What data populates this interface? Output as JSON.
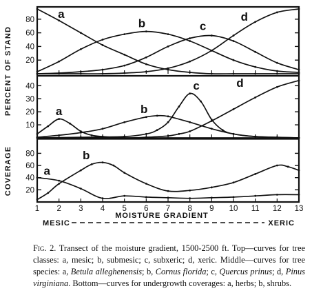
{
  "chart_data": {
    "type": "line",
    "x_ticks": [
      1,
      2,
      3,
      4,
      5,
      6,
      7,
      8,
      9,
      10,
      11,
      12,
      13
    ],
    "xlim": [
      1,
      13
    ],
    "xlabel": "MOISTURE GRADIENT",
    "x_left_label": "MESIC",
    "x_right_label": "XERIC",
    "grid": false,
    "panels": [
      {
        "id": "top",
        "ylabel": "PERCENT OF STAND",
        "ylim": [
          0,
          98
        ],
        "yticks": [
          20,
          40,
          60,
          80
        ],
        "series": [
          {
            "name": "a",
            "x": [
              1,
              2,
              3,
              4,
              5,
              6,
              7,
              8,
              9,
              10,
              11,
              12,
              13
            ],
            "y": [
              95,
              78,
              60,
              42,
              28,
              14,
              6,
              2,
              0,
              0,
              0,
              0,
              0
            ]
          },
          {
            "name": "b",
            "x": [
              1,
              2,
              3,
              4,
              5,
              6,
              7,
              8,
              9,
              10,
              11,
              12,
              13
            ],
            "y": [
              3,
              18,
              36,
              50,
              58,
              62,
              58,
              48,
              34,
              20,
              10,
              4,
              2
            ]
          },
          {
            "name": "c",
            "x": [
              1,
              2,
              3,
              4,
              5,
              6,
              7,
              8,
              9,
              10,
              11,
              12,
              13
            ],
            "y": [
              0,
              1,
              3,
              6,
              12,
              24,
              40,
              52,
              56,
              48,
              32,
              16,
              6
            ]
          },
          {
            "name": "d",
            "x": [
              1,
              2,
              3,
              4,
              5,
              6,
              7,
              8,
              9,
              10,
              11,
              12,
              13
            ],
            "y": [
              0,
              0,
              0,
              0,
              1,
              3,
              8,
              18,
              34,
              56,
              76,
              90,
              95
            ]
          }
        ]
      },
      {
        "id": "middle",
        "ylabel": "PERCENT OF STAND",
        "ylim": [
          0,
          46
        ],
        "yticks": [
          10,
          20,
          30,
          40
        ],
        "series": [
          {
            "name": "a",
            "x": [
              1,
              1.5,
              2,
              2.5,
              3,
              3.5,
              4,
              5,
              6,
              13
            ],
            "y": [
              3,
              9,
              14.5,
              11,
              5,
              2,
              1,
              0,
              0,
              0
            ]
          },
          {
            "name": "b",
            "x": [
              1,
              2,
              3,
              4,
              5,
              6,
              6.5,
              7,
              8,
              9,
              10,
              11,
              12,
              13
            ],
            "y": [
              0.5,
              2,
              4,
              7,
              12,
              16,
              17,
              16.5,
              12,
              7,
              3,
              1,
              0.5,
              0
            ]
          },
          {
            "name": "c",
            "x": [
              1,
              3,
              5,
              6,
              6.5,
              7,
              7.5,
              8,
              8.5,
              9,
              9.5,
              10,
              11,
              13
            ],
            "y": [
              0,
              0.5,
              1,
              3,
              6,
              12,
              24,
              34,
              28,
              14,
              6,
              3,
              1,
              0
            ]
          },
          {
            "name": "d",
            "x": [
              1,
              5,
              6,
              7,
              7.5,
              8,
              9,
              10,
              11,
              12,
              13
            ],
            "y": [
              0,
              0,
              0.5,
              1.5,
              3,
              5,
              13,
              22,
              31,
              39,
              44
            ]
          }
        ]
      },
      {
        "id": "bottom",
        "ylabel": "COVERAGE",
        "ylim": [
          0,
          102
        ],
        "yticks": [
          20,
          40,
          60,
          80
        ],
        "series": [
          {
            "name": "a",
            "x": [
              1,
              2,
              3,
              4,
              5,
              6,
              7,
              8,
              9,
              10,
              11,
              12,
              13
            ],
            "y": [
              40,
              35,
              22,
              6,
              10,
              8,
              7,
              6,
              7,
              8,
              10,
              12,
              12
            ]
          },
          {
            "name": "b",
            "x": [
              1,
              1.5,
              2,
              3,
              3.5,
              4,
              4.5,
              5,
              6,
              7,
              8,
              9,
              10,
              11,
              12,
              12.5,
              13
            ],
            "y": [
              4,
              15,
              30,
              52,
              62,
              65,
              60,
              48,
              30,
              18,
              19,
              24,
              32,
              46,
              60,
              58,
              52
            ]
          }
        ]
      }
    ]
  },
  "caption": {
    "figure_label": "Fig. 2.",
    "segments": [
      {
        "text": " Transect of the moisture gradient, 1500-2500 ft. Top—curves for tree classes: a, mesic; b, submesic; c, subxeric; d, xeric. Middle—curves for tree species: a, ",
        "italic": false
      },
      {
        "text": "Betula alleghenensis",
        "italic": true
      },
      {
        "text": "; b, ",
        "italic": false
      },
      {
        "text": "Cornus florida",
        "italic": true
      },
      {
        "text": "; c, ",
        "italic": false
      },
      {
        "text": "Quercus prinus",
        "italic": true
      },
      {
        "text": "; d, ",
        "italic": false
      },
      {
        "text": "Pinus virginiana",
        "italic": true
      },
      {
        "text": ". Bottom—curves for undergrowth coverages: a, herbs; b, shrubs.",
        "italic": false
      }
    ]
  },
  "colors": {
    "ink": "#111111",
    "paper": "#ffffff"
  }
}
